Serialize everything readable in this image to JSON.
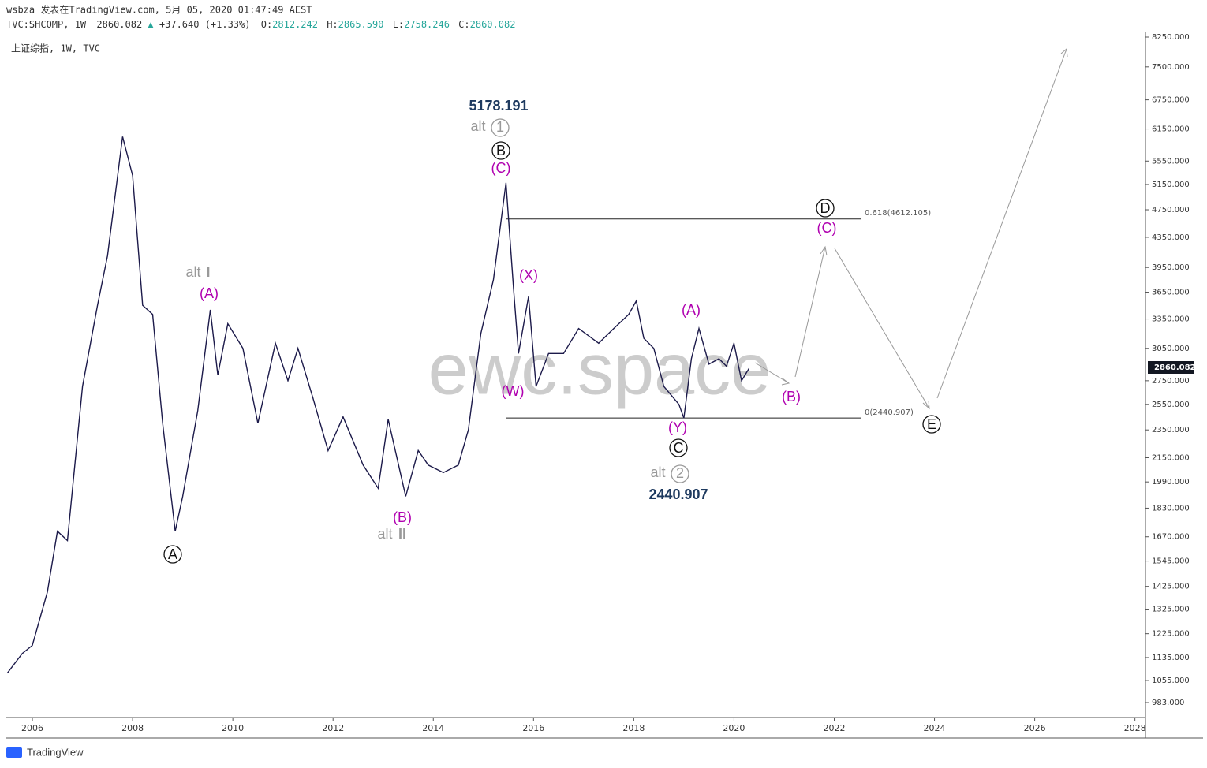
{
  "chart_data": {
    "type": "line",
    "header": {
      "publisher": "wsbza 发表在TradingView.com, 5月 05, 2020 01:47:49 AEST",
      "symbol": "TVC:SHCOMP, 1W",
      "last": "2860.082",
      "arrow": "▲",
      "change": "+37.640 (+1.33%)",
      "o_label": "O:",
      "open": "2812.242",
      "h_label": "H:",
      "high": "2865.590",
      "l_label": "L:",
      "low": "2758.246",
      "c_label": "C:",
      "close": "2860.082"
    },
    "title": "上证综指, 1W, TVC",
    "watermark": "ewc.space",
    "footer": "TradingView",
    "color": "#1c1a4a",
    "log_scale": true,
    "x": [
      2005.5,
      2005.8,
      2006.0,
      2006.3,
      2006.5,
      2006.7,
      2007.0,
      2007.3,
      2007.5,
      2007.8,
      2008.0,
      2008.2,
      2008.4,
      2008.6,
      2008.85,
      2009.0,
      2009.3,
      2009.55,
      2009.7,
      2009.9,
      2010.2,
      2010.5,
      2010.85,
      2011.1,
      2011.3,
      2011.6,
      2011.9,
      2012.2,
      2012.6,
      2012.9,
      2013.1,
      2013.45,
      2013.7,
      2013.9,
      2014.2,
      2014.5,
      2014.7,
      2014.95,
      2015.2,
      2015.45,
      2015.6,
      2015.7,
      2015.9,
      2016.05,
      2016.3,
      2016.6,
      2016.9,
      2017.3,
      2017.6,
      2017.9,
      2018.05,
      2018.2,
      2018.4,
      2018.6,
      2018.9,
      2019.0,
      2019.15,
      2019.3,
      2019.5,
      2019.7,
      2019.85,
      2020.0,
      2020.15,
      2020.3
    ],
    "values": [
      1080,
      1150,
      1180,
      1400,
      1700,
      1650,
      2700,
      3500,
      4100,
      6000,
      5300,
      3500,
      3400,
      2400,
      1700,
      1900,
      2500,
      3450,
      2800,
      3300,
      3050,
      2400,
      3100,
      2750,
      3050,
      2600,
      2200,
      2450,
      2100,
      1950,
      2430,
      1900,
      2200,
      2100,
      2050,
      2100,
      2350,
      3200,
      3800,
      5178.191,
      3700,
      3000,
      3600,
      2700,
      3000,
      3000,
      3250,
      3100,
      3250,
      3400,
      3550,
      3150,
      3050,
      2700,
      2550,
      2440.907,
      2950,
      3250,
      2900,
      2950,
      2880,
      3100,
      2750,
      2860.082
    ],
    "xlim": [
      2005.48,
      2028.21
    ],
    "xticks": [
      2006,
      2008,
      2010,
      2012,
      2014,
      2016,
      2018,
      2020,
      2022,
      2024,
      2026,
      2028
    ],
    "ylim": [
      937,
      8397
    ],
    "yticks": [
      {
        "value": 8250,
        "label": "8250.000"
      },
      {
        "value": 7500,
        "label": "7500.000"
      },
      {
        "value": 6750,
        "label": "6750.000"
      },
      {
        "value": 6150,
        "label": "6150.000"
      },
      {
        "value": 5550,
        "label": "5550.000"
      },
      {
        "value": 5150,
        "label": "5150.000"
      },
      {
        "value": 4750,
        "label": "4750.000"
      },
      {
        "value": 4350,
        "label": "4350.000"
      },
      {
        "value": 3950,
        "label": "3950.000"
      },
      {
        "value": 3650,
        "label": "3650.000"
      },
      {
        "value": 3350,
        "label": "3350.000"
      },
      {
        "value": 3050,
        "label": "3050.000"
      },
      {
        "value": 2750,
        "label": "2750.000"
      },
      {
        "value": 2550,
        "label": "2550.000"
      },
      {
        "value": 2350,
        "label": "2350.000"
      },
      {
        "value": 2150,
        "label": "2150.000"
      },
      {
        "value": 1990,
        "label": "1990.000"
      },
      {
        "value": 1830,
        "label": "1830.000"
      },
      {
        "value": 1670,
        "label": "1670.000"
      },
      {
        "value": 1545,
        "label": "1545.000"
      },
      {
        "value": 1425,
        "label": "1425.000"
      },
      {
        "value": 1325,
        "label": "1325.000"
      },
      {
        "value": 1225,
        "label": "1225.000"
      },
      {
        "value": 1135,
        "label": "1135.000"
      },
      {
        "value": 1055,
        "label": "1055.000"
      },
      {
        "value": 983,
        "label": "983.000"
      }
    ],
    "levels": [
      4612.105,
      2440.907
    ],
    "annotations": [
      "5178.191",
      "alt",
      "1",
      "B",
      "(C)",
      "alt",
      "I",
      "(A)",
      "A",
      "(B)",
      "alt",
      "II",
      "(X)",
      "(W)",
      "(A)",
      "(Y)",
      "C",
      "alt",
      "2",
      "2440.907",
      "D",
      "(C)",
      "(B)",
      "E",
      "0.618(4612.105)",
      "0(2440.907)"
    ]
  }
}
